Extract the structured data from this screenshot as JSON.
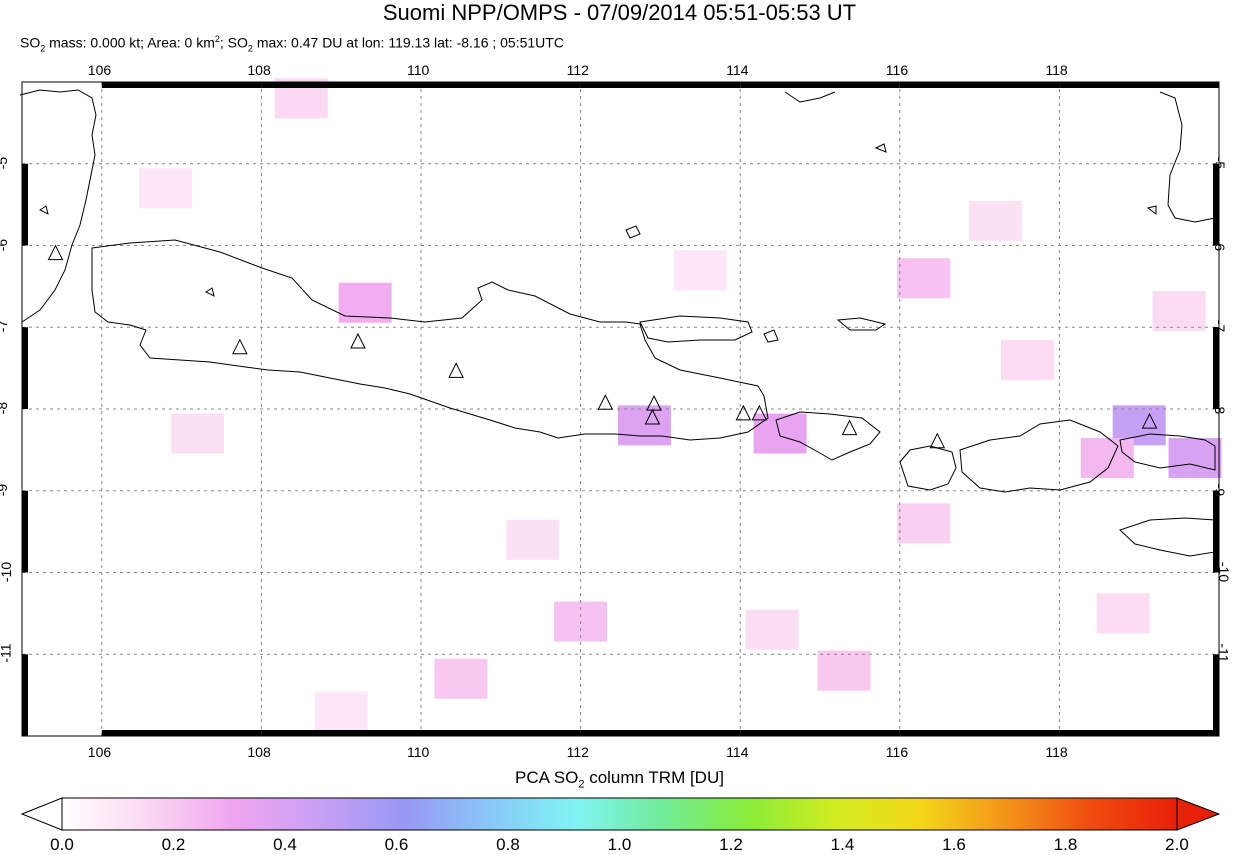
{
  "title": "Suomi NPP/OMPS - 07/09/2014 05:51-05:53 UT",
  "subtitle": {
    "p1": "SO",
    "p1_sub": "2",
    "p2": " mass: 0.000 kt; Area: 0 km",
    "p2_sup": "2",
    "p3": "; SO",
    "p3_sub": "2",
    "p4": " max: 0.47 DU at lon: 119.13 lat: -8.16 ; 05:51UTC"
  },
  "lon_ticks": [
    "106",
    "108",
    "110",
    "112",
    "114",
    "116",
    "118"
  ],
  "lat_ticks": [
    "-5",
    "-6",
    "-7",
    "-8",
    "-9",
    "-10",
    "-11"
  ],
  "map_extent": {
    "lon_min": 105.0,
    "lon_max": 120.0,
    "lat_min": -12.0,
    "lat_max": -4.0
  },
  "volcano_markers": [
    {
      "lon": 105.42,
      "lat": -6.1
    },
    {
      "lon": 107.73,
      "lat": -7.25
    },
    {
      "lon": 109.21,
      "lat": -7.18
    },
    {
      "lon": 110.44,
      "lat": -7.54
    },
    {
      "lon": 112.31,
      "lat": -7.93
    },
    {
      "lon": 112.92,
      "lat": -7.94
    },
    {
      "lon": 112.9,
      "lat": -8.11
    },
    {
      "lon": 114.04,
      "lat": -8.06
    },
    {
      "lon": 114.24,
      "lat": -8.06
    },
    {
      "lon": 115.37,
      "lat": -8.24
    },
    {
      "lon": 116.47,
      "lat": -8.4
    },
    {
      "lon": 119.13,
      "lat": -8.16
    }
  ],
  "so2_cells": [
    {
      "lon": 109.3,
      "lat": -6.7,
      "v": 0.28
    },
    {
      "lon": 112.8,
      "lat": -8.2,
      "v": 0.38
    },
    {
      "lon": 114.5,
      "lat": -8.3,
      "v": 0.34
    },
    {
      "lon": 119.0,
      "lat": -8.2,
      "v": 0.47
    },
    {
      "lon": 119.7,
      "lat": -8.6,
      "v": 0.4
    },
    {
      "lon": 118.6,
      "lat": -8.6,
      "v": 0.25
    },
    {
      "lon": 116.3,
      "lat": -6.4,
      "v": 0.22
    },
    {
      "lon": 112.0,
      "lat": -10.6,
      "v": 0.22
    },
    {
      "lon": 110.5,
      "lat": -11.3,
      "v": 0.2
    },
    {
      "lon": 115.3,
      "lat": -11.2,
      "v": 0.2
    },
    {
      "lon": 116.3,
      "lat": -9.4,
      "v": 0.18
    },
    {
      "lon": 108.5,
      "lat": -4.2,
      "v": 0.15
    },
    {
      "lon": 107.2,
      "lat": -8.3,
      "v": 0.12
    },
    {
      "lon": 111.4,
      "lat": -9.6,
      "v": 0.12
    },
    {
      "lon": 117.6,
      "lat": -7.4,
      "v": 0.14
    },
    {
      "lon": 106.8,
      "lat": -5.3,
      "v": 0.1
    },
    {
      "lon": 113.5,
      "lat": -6.3,
      "v": 0.1
    },
    {
      "lon": 118.8,
      "lat": -10.5,
      "v": 0.14
    },
    {
      "lon": 114.4,
      "lat": -10.7,
      "v": 0.13
    },
    {
      "lon": 109.0,
      "lat": -11.7,
      "v": 0.1
    },
    {
      "lon": 117.2,
      "lat": -5.7,
      "v": 0.12
    },
    {
      "lon": 119.5,
      "lat": -6.8,
      "v": 0.14
    }
  ],
  "colorbar": {
    "title_pre": "PCA SO",
    "title_sub": "2",
    "title_post": " column TRM [DU]",
    "min": 0.0,
    "max": 2.0,
    "ticks": [
      "0.0",
      "0.2",
      "0.4",
      "0.6",
      "0.8",
      "1.0",
      "1.2",
      "1.4",
      "1.6",
      "1.8",
      "2.0"
    ],
    "colors": [
      "#ffffff",
      "#fbd8f2",
      "#f0a4f0",
      "#c8a0f4",
      "#9898f4",
      "#88c8f8",
      "#80f4f4",
      "#70ec98",
      "#88ec38",
      "#d0ec20",
      "#f4d818",
      "#f49418",
      "#f04c10",
      "#e82008"
    ]
  },
  "colors": {
    "frame": "#000000",
    "grid": "#888888",
    "coast": "#000000"
  }
}
